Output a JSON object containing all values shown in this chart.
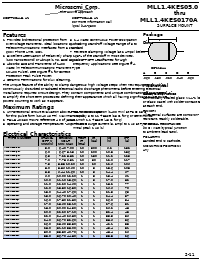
{
  "title_line1": "MLL1.4KES05.0",
  "title_line2": "thru",
  "title_line3": "MLL1.4KES0170A",
  "title_line4": "SURFACE MOUNT",
  "company": "Microsemi Corp.",
  "company_sub": "The Active Approach",
  "addr_left1": "SCOTTSDALE, AZ",
  "addr_right1": "SCOTTSDALE, AZ",
  "addr_right2": "For more information call",
  "addr_right3": "(602) 941-6300",
  "features_title": "Features",
  "features_left": [
    "1  Provides bidirectional protection from",
    "   overvoltage transients. Ideal locations such as",
    "   Telecommunications interfaces from a standard",
    "   600V Phone Line, ISDN.",
    "2  Excellent Attenuation of Relatively Sharp",
    "   (100 nanosecond) or Abrupt (1 nS, ESD) signals.",
    "3  Absorbs ESD and Transients of 1400",
    "   Watts (in Telecommunications Transient Type",
    "   10/400 Pulse). See Figure #1 for Correct",
    "   Protection Peak Pulse Power.",
    "4  Ceramic Terminations for Flux Cleaning."
  ],
  "features_right": [
    "5  1.4 Watts Continuous Power Dissipation",
    "6  Working Stand-off Voltage Range of 5 to",
    "   170V",
    "7  Reverse Clamping Voltage (at 2 Amps) below",
    "   165% of the Standoff in most devices.",
    "8  Low DPP/DTR Leadframes for High",
    "   Frequency Applications See Figure #4."
  ],
  "para_lines": [
    "The unique feature of the ability to clamp dangerous high voltage steps when new equipment such as",
    "continuously disturbed or radiated electrical/radio discharge phenomena before entering electrical",
    "installations requires circuit design. They contain components and unique combination of parameters",
    "to amplify the short term processes defining their appearance which all having significant pulse pulse",
    "powers counting to work as it appears."
  ],
  "max_title": "Maximum Ratings",
  "max_left": [
    "1  Uni-Directional Circuit evaluation above TRBL or 1400 Watts",
    "   for this pulse form (10/40 uS TR)  Maximum Input",
    "2  TBILB 40/250 mSw-s reference 4 F of JEDEC",
    "3  Operating and Storage Temperature: -40 to +150 C"
  ],
  "max_right": [
    "4  DC Power Dissipation (1400 mW) at Ta = 25 C",
    "5  Standby 5 to 11 +Base (25 C, for 6 or CentiInches",
    "   0.1inch 1.1 +Base (45 C, for 6)",
    "6  Reverse Surge Current (5, amp) to 1 us at TJ = 25 C",
    "   initial peak 1 uS (1)"
  ],
  "elec_title": "Electrical Characteristics",
  "col_headers": [
    "TYPE NUMBER",
    "STAND-\nOFF V\nVWM(V)",
    "BRKDWN\nVOLT\nMIN MAX",
    "TEST\nIT\n(mA)",
    "IR\n(uA)",
    "VC\n(V)",
    "IPP\n(A)"
  ],
  "table_rows": [
    [
      "MLL1.4KESD5.0A",
      "5.0",
      "6.40 7.00",
      "10",
      "500",
      "9.2",
      "152"
    ],
    [
      "MLL1.4KESD6.0A",
      "6.0",
      "6.67 8.15",
      "10",
      "200",
      "10.3",
      "136"
    ],
    [
      "MLL1.4KESD6.5A",
      "6.5",
      "7.22 8.82",
      "10",
      "150",
      "11.2",
      "125"
    ],
    [
      "MLL1.4KESD7.0A",
      "7.0",
      "7.78 9.51",
      "10",
      "50",
      "12.0",
      "117"
    ],
    [
      "MLL1.4KESD7.5A",
      "7.5",
      "8.33 10.20",
      "10",
      "20",
      "12.9",
      "109"
    ],
    [
      "MLL1.4KESD8.0A",
      "8.0",
      "8.89 10.90",
      "10",
      "5",
      "13.6",
      "103"
    ],
    [
      "MLL1.4KESD8.5A",
      "8.5",
      "9.44 11.60",
      "10",
      "5",
      "14.4",
      "97"
    ],
    [
      "MLL1.4KESD9.0A",
      "9.0",
      "10.00 12.20",
      "1",
      "5",
      "15.4",
      "91"
    ],
    [
      "MLL1.4KESD10A",
      "10.0",
      "11.10 13.60",
      "1",
      "5",
      "17.0",
      "82"
    ],
    [
      "MLL1.4KESD11A",
      "11.0",
      "12.20 14.90",
      "1",
      "1",
      "18.2",
      "77"
    ],
    [
      "MLL1.4KESD12A",
      "12.0",
      "13.30 16.30",
      "1",
      "1",
      "19.9",
      "70"
    ],
    [
      "MLL1.4KESD13A",
      "13.0",
      "14.40 17.60",
      "1",
      "1",
      "21.5",
      "65"
    ],
    [
      "MLL1.4KESD15A",
      "15.0",
      "16.70 20.40",
      "1",
      "1",
      "24.4",
      "57"
    ],
    [
      "MLL1.4KESD16A",
      "16.0",
      "17.80 21.80",
      "1",
      "1",
      "26.0",
      "54"
    ],
    [
      "MLL1.4KESD17A",
      "17.0",
      "18.90 23.10",
      "1",
      "1",
      "27.6",
      "51"
    ],
    [
      "MLL1.4KESD18A",
      "18.0",
      "20.00 24.50",
      "1",
      "1",
      "29.2",
      "48"
    ],
    [
      "MLL1.4KESD20A",
      "20.0",
      "22.20 27.10",
      "1",
      "1",
      "32.4",
      "43"
    ],
    [
      "MLL1.4KESD22A",
      "22.0",
      "24.40 29.80",
      "1",
      "1",
      "35.5",
      "39"
    ],
    [
      "MLL1.4KESD24A",
      "24.0",
      "26.70 32.60",
      "1",
      "1",
      "38.9",
      "36"
    ],
    [
      "MLL1.4KESD26A",
      "26.0",
      "28.90 35.30",
      "1",
      "1",
      "42.1",
      "33"
    ],
    [
      "MLL1.4KESD28A",
      "28.0",
      "31.10 38.00",
      "1",
      "1",
      "45.4",
      "31"
    ],
    [
      "MLL1.4KESD30A",
      "30.0",
      "33.30 40.70",
      "1",
      "1",
      "48.4",
      "29"
    ],
    [
      "MLL1.4KESD33A",
      "33.0",
      "36.70 44.80",
      "1",
      "1",
      "53.3",
      "26"
    ]
  ],
  "highlight_row_idx": 22,
  "pkg_title": "Package\nDimensions",
  "pkg_label": "DO-213AA",
  "mech_title": "Mechanical\nCharacteristics",
  "mech_items": [
    [
      "CASE:",
      "Hermetically sealed glass MLL-1 (DO-35\nor Glass case) with solder contact tabs\nat each end."
    ],
    [
      "FINISH:",
      "All external surfaces are corrosion-\nresistant, readily solderable."
    ],
    [
      "THERMAL RESISTANCE:",
      "90 C / Watt (typical junction\nto ambient lead ratio)."
    ],
    [
      "POLARITY:",
      "Banded end is cathode."
    ],
    [
      "MOUNTING POSITION:",
      "Any"
    ]
  ],
  "page_num": "S-11",
  "bg": "#ffffff",
  "header_bg": "#bbbbbb",
  "row_odd": "#e8e8e8",
  "row_even": "#f8f8f8",
  "highlight_color": "#ccddff"
}
